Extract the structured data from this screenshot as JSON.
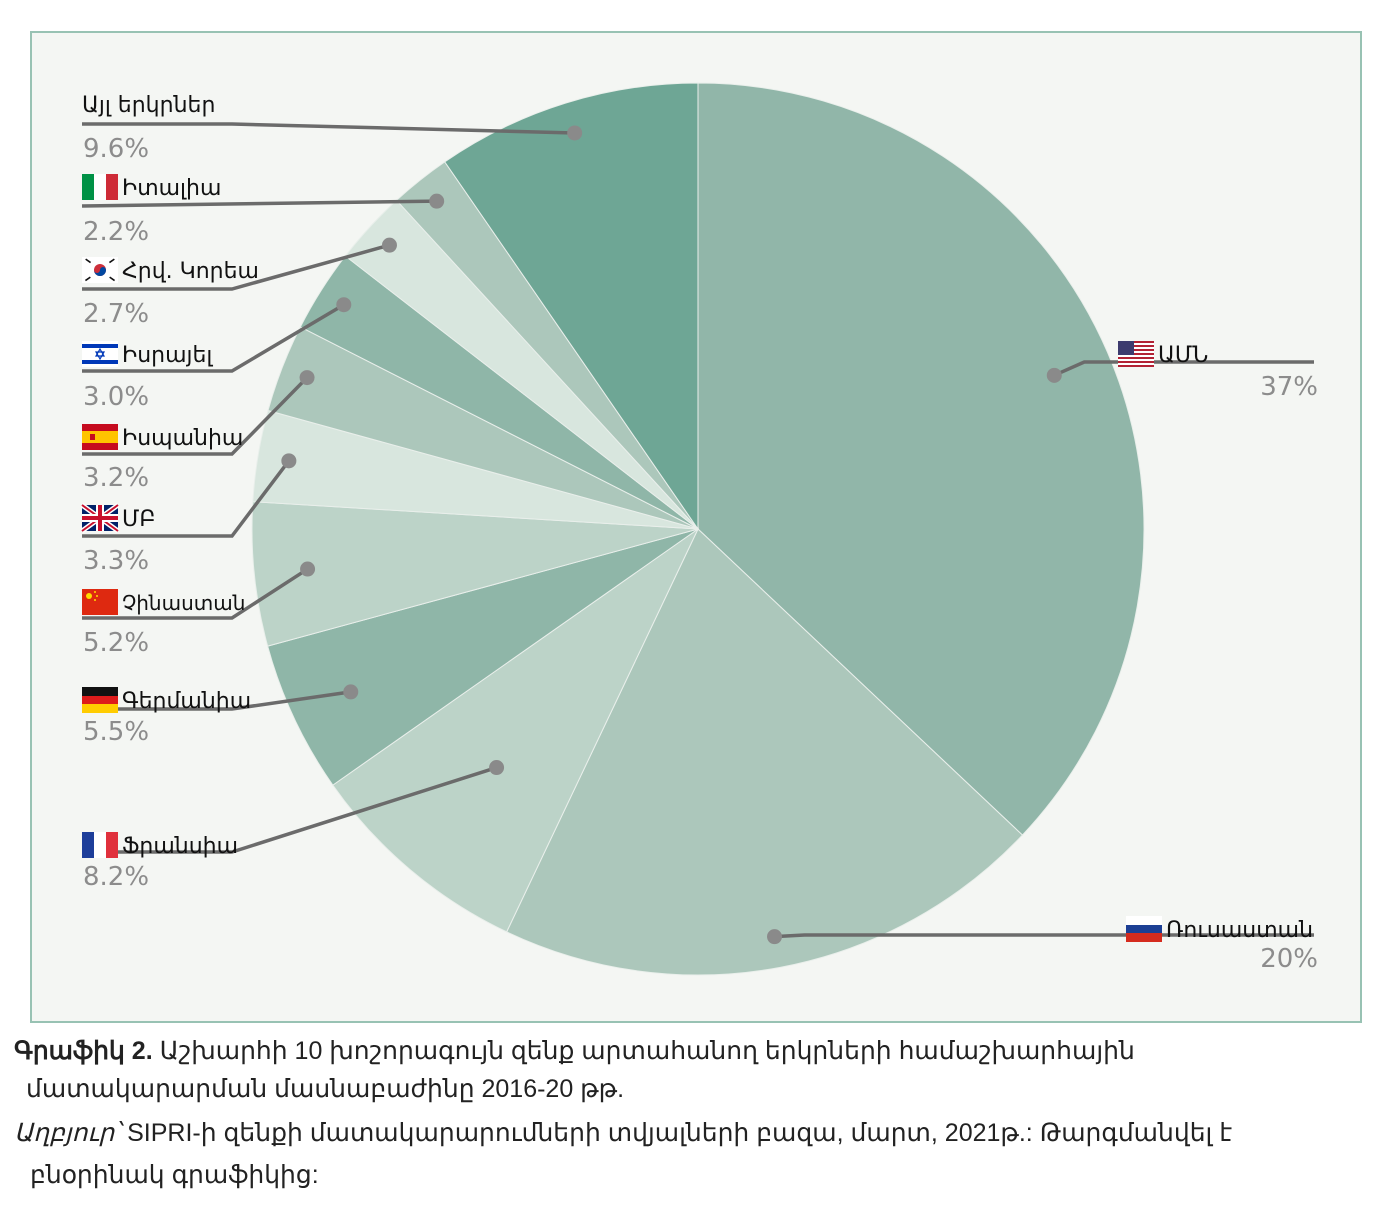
{
  "chart_data": {
    "type": "pie",
    "start_angle_deg": 0,
    "direction": "clockwise",
    "slices": [
      {
        "label": "ԱՄՆ",
        "value": 37,
        "value_label": "37%",
        "color": "#91b6a9",
        "flag": "us-flag-icon"
      },
      {
        "label": "Ռուսաստան",
        "value": 20,
        "value_label": "20%",
        "color": "#acc7bb",
        "flag": "ru-flag-icon"
      },
      {
        "label": "Ֆրանսիա",
        "value": 8.2,
        "value_label": "8.2%",
        "color": "#bcd3c8",
        "flag": "fr-flag-icon"
      },
      {
        "label": "Գերմանիա",
        "value": 5.5,
        "value_label": "5.5%",
        "color": "#8fb6a8",
        "flag": "de-flag-icon"
      },
      {
        "label": "Չինաստան",
        "value": 5.2,
        "value_label": "5.2%",
        "color": "#bcd3c8",
        "flag": "cn-flag-icon"
      },
      {
        "label": "ՄԲ",
        "value": 3.3,
        "value_label": "3.3%",
        "color": "#d8e6de",
        "flag": "uk-flag-icon"
      },
      {
        "label": "Իսպանիա",
        "value": 3.2,
        "value_label": "3.2%",
        "color": "#acc7bb",
        "flag": "es-flag-icon"
      },
      {
        "label": "Իսրայել",
        "value": 3.0,
        "value_label": "3.0%",
        "color": "#8fb6a8",
        "flag": "il-flag-icon"
      },
      {
        "label": "Հրվ. Կորեա",
        "value": 2.7,
        "value_label": "2.7%",
        "color": "#d8e6de",
        "flag": "kr-flag-icon"
      },
      {
        "label": "Իտալիա",
        "value": 2.2,
        "value_label": "2.2%",
        "color": "#acc7bb",
        "flag": "it-flag-icon"
      },
      {
        "label": "Այլ երկրներ",
        "value": 9.6,
        "value_label": "9.6%",
        "color": "#6ea695",
        "flag": ""
      }
    ],
    "legend": "none"
  },
  "caption": {
    "figure_label": "Գրաֆիկ 2.",
    "title_line1": "Աշխարհի 10 խոշորագույն զենք արտահանող երկրների համաշխարհային",
    "title_line2": "մատակարարման մասնաբաժինը 2016-20 թթ.",
    "source_label": "Աղբյուր՝",
    "source_line1": "SIPRI-ի զենքի մատակարարումների տվյալների բազա, մարտ, 2021թ.: Թարգմանվել է",
    "source_line2": "բնօրինակ գրաֆիկից:"
  }
}
